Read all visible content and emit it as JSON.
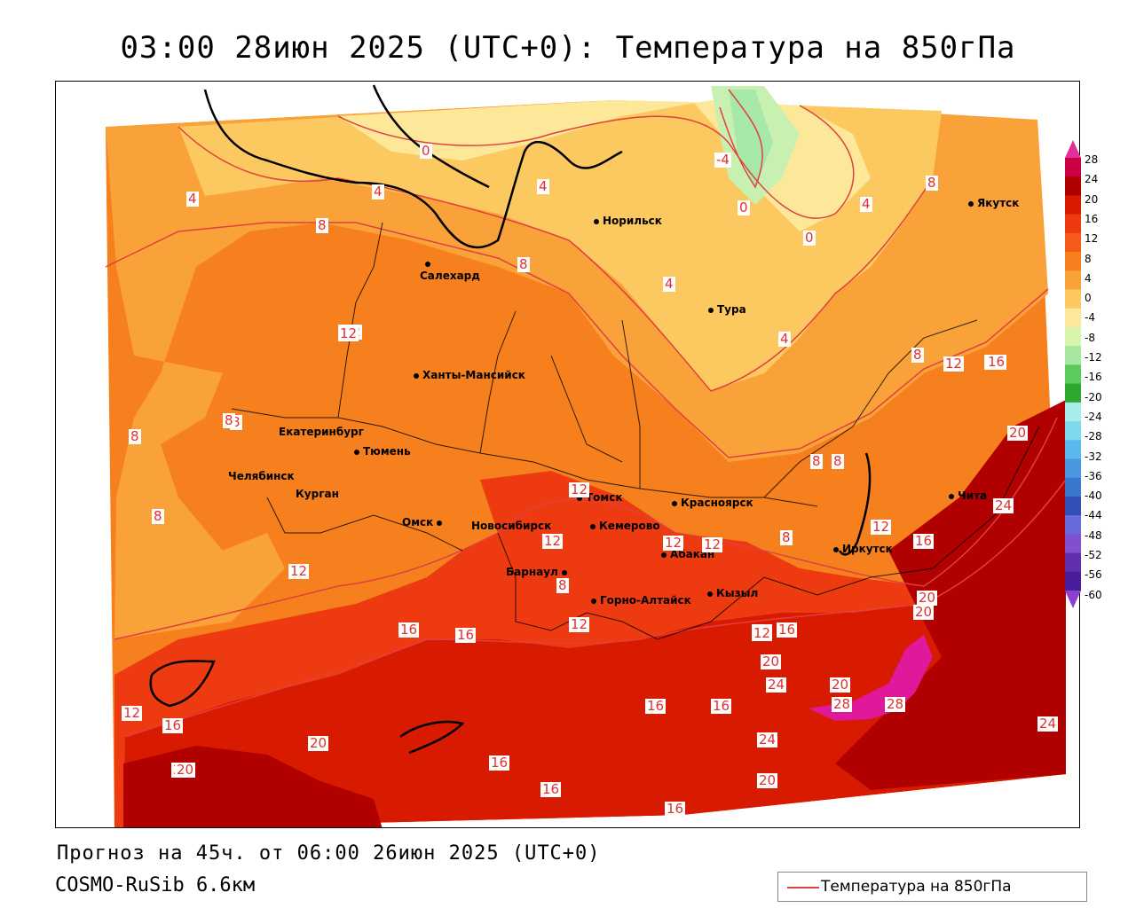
{
  "title": "03:00 28июн 2025 (UTC+0): Температура на 850гПа",
  "footer": {
    "forecast": "Прогноз на 45ч. от 06:00 26июн 2025 (UTC+0)",
    "model": "COSMO-RuSib 6.6км"
  },
  "legend": {
    "label": "Температура на 850гПа",
    "line_color": "#e04040"
  },
  "colorbar": {
    "ticks": [
      "28",
      "24",
      "20",
      "16",
      "12",
      "8",
      "4",
      "0",
      "-4",
      "-8",
      "-12",
      "-16",
      "-20",
      "-24",
      "-28",
      "-32",
      "-36",
      "-40",
      "-44",
      "-48",
      "-52",
      "-56",
      "-60"
    ],
    "colors": [
      "#cc0044",
      "#b00000",
      "#d81a00",
      "#ee3a10",
      "#f45a1a",
      "#f7801e",
      "#faa23a",
      "#fcc860",
      "#fde89a",
      "#d8f5b0",
      "#a6e8a0",
      "#5ccb5c",
      "#2ea82e",
      "#a8ecec",
      "#7ed8ee",
      "#5ab8ec",
      "#4898e0",
      "#3a78d0",
      "#3050b8",
      "#6a6ae0",
      "#8050d0",
      "#6030b0",
      "#4a1e9a"
    ],
    "top_arrow_color": "#e0309a",
    "bottom_arrow_color": "#8a40d0"
  },
  "cities": [
    {
      "name": "Норильск"
    },
    {
      "name": "Якутск"
    },
    {
      "name": "Салехард"
    },
    {
      "name": "Тура"
    },
    {
      "name": "Ханты-Мансийск"
    },
    {
      "name": "Екатеринбург"
    },
    {
      "name": "Тюмень"
    },
    {
      "name": "Челябинск"
    },
    {
      "name": "Курган"
    },
    {
      "name": "Томск"
    },
    {
      "name": "Красноярск"
    },
    {
      "name": "Омск"
    },
    {
      "name": "Новосибирск"
    },
    {
      "name": "Кемерово"
    },
    {
      "name": "Абакан"
    },
    {
      "name": "Барнаул"
    },
    {
      "name": "Иркутск"
    },
    {
      "name": "Чита"
    },
    {
      "name": "Горно-Алтайск"
    },
    {
      "name": "Кызыл"
    }
  ],
  "contour_labels": [
    "0",
    "-4",
    "0",
    "0",
    "4",
    "4",
    "4",
    "4",
    "8",
    "8",
    "4",
    "8",
    "4",
    "8",
    "12",
    "12",
    "12",
    "16",
    "8",
    "8",
    "8",
    "8",
    "8",
    "12",
    "12",
    "12",
    "12",
    "8",
    "12",
    "16",
    "20",
    "24",
    "8",
    "12",
    "12",
    "8",
    "16",
    "12",
    "20",
    "16",
    "12",
    "20",
    "20",
    "24",
    "28",
    "28",
    "12",
    "16",
    "16",
    "16",
    "16",
    "16",
    "24",
    "20",
    "20",
    "16",
    "16",
    "16",
    "20",
    "20",
    "24",
    "12",
    "16",
    "20"
  ]
}
